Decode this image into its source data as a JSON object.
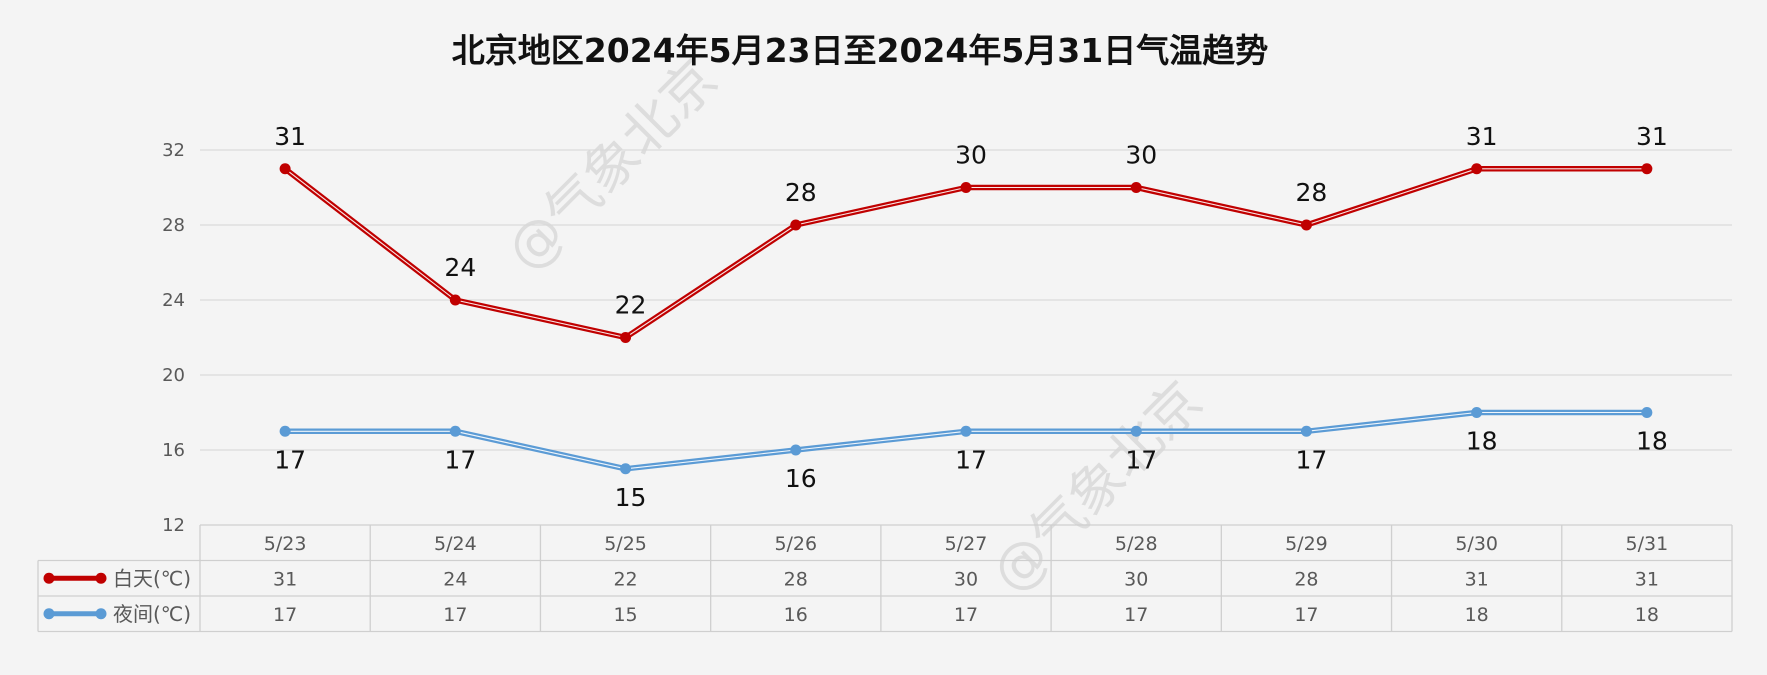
{
  "chart_data": {
    "type": "line",
    "title": "北京地区2024年5月23日至2024年5月31日气温趋势",
    "watermark": "@气象北京",
    "categories": [
      "5/23",
      "5/24",
      "5/25",
      "5/26",
      "5/27",
      "5/28",
      "5/29",
      "5/30",
      "5/31"
    ],
    "ylim": [
      12,
      32
    ],
    "yticks": [
      12,
      16,
      20,
      24,
      28,
      32
    ],
    "grid": true,
    "legend": "data-table-left",
    "series": [
      {
        "name": "白天(℃)",
        "color": "#c00000",
        "label_position": "above",
        "values": [
          31,
          24,
          22,
          28,
          30,
          30,
          28,
          31,
          31
        ]
      },
      {
        "name": "夜间(℃)",
        "color": "#5b9bd5",
        "label_position": "below",
        "values": [
          17,
          17,
          15,
          16,
          17,
          17,
          17,
          18,
          18
        ]
      }
    ]
  }
}
